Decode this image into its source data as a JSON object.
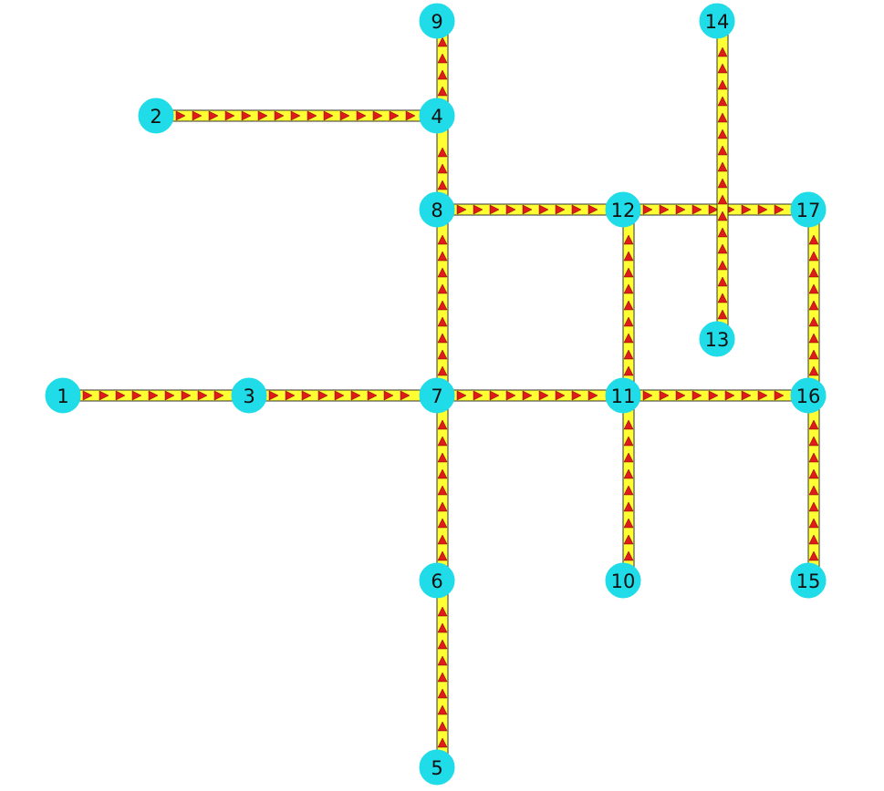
{
  "graph": {
    "nodes": [
      {
        "id": "1",
        "label": "1"
      },
      {
        "id": "2",
        "label": "2"
      },
      {
        "id": "3",
        "label": "3"
      },
      {
        "id": "4",
        "label": "4"
      },
      {
        "id": "5",
        "label": "5"
      },
      {
        "id": "6",
        "label": "6"
      },
      {
        "id": "7",
        "label": "7"
      },
      {
        "id": "8",
        "label": "8"
      },
      {
        "id": "9",
        "label": "9"
      },
      {
        "id": "10",
        "label": "10"
      },
      {
        "id": "11",
        "label": "11"
      },
      {
        "id": "12",
        "label": "12"
      },
      {
        "id": "13",
        "label": "13"
      },
      {
        "id": "14",
        "label": "14"
      },
      {
        "id": "15",
        "label": "15"
      },
      {
        "id": "16",
        "label": "16"
      },
      {
        "id": "17",
        "label": "17"
      }
    ],
    "edges": [
      {
        "from": "1",
        "to": "3"
      },
      {
        "from": "3",
        "to": "7"
      },
      {
        "from": "2",
        "to": "4"
      },
      {
        "from": "4",
        "to": "9"
      },
      {
        "from": "8",
        "to": "4"
      },
      {
        "from": "7",
        "to": "8"
      },
      {
        "from": "6",
        "to": "7"
      },
      {
        "from": "5",
        "to": "6"
      },
      {
        "from": "8",
        "to": "12"
      },
      {
        "from": "12",
        "to": "17"
      },
      {
        "from": "7",
        "to": "11"
      },
      {
        "from": "11",
        "to": "16"
      },
      {
        "from": "11",
        "to": "12"
      },
      {
        "from": "10",
        "to": "11"
      },
      {
        "from": "13",
        "to": "14"
      },
      {
        "from": "16",
        "to": "17"
      },
      {
        "from": "15",
        "to": "16"
      }
    ],
    "colors": {
      "node_fill": "#1fdce8",
      "edge_fill": "#ffff33",
      "arrow_fill": "#e01b1b"
    }
  }
}
